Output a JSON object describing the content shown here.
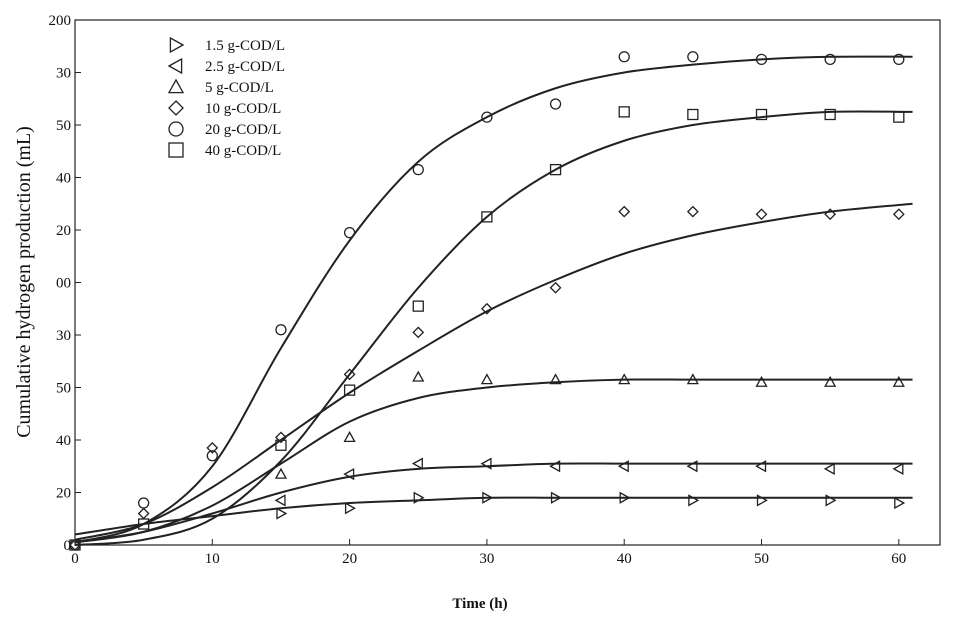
{
  "chart_data": {
    "type": "scatter",
    "xlabel": "Time (h)",
    "ylabel": "Cumulative hydrogen production (mL)",
    "x": [
      0,
      5,
      10,
      15,
      20,
      25,
      30,
      35,
      40,
      45,
      50,
      55,
      60
    ],
    "fit_x": [
      0,
      5,
      10,
      15,
      20,
      25,
      30,
      35,
      40,
      45,
      50,
      55,
      61
    ],
    "xlim": [
      0,
      63
    ],
    "ylim": [
      0,
      200
    ],
    "xticks": [
      0,
      10,
      20,
      30,
      40,
      50,
      60
    ],
    "yticks": [
      0,
      20,
      40,
      {
        "value": 60,
        "label": "50"
      },
      {
        "value": 80,
        "label": "30"
      },
      {
        "value": 100,
        "label": "00"
      },
      {
        "value": 120,
        "label": "20"
      },
      {
        "value": 140,
        "label": "40"
      },
      {
        "value": 160,
        "label": "50"
      },
      {
        "value": 180,
        "label": "30"
      },
      200
    ],
    "color": "#222222",
    "series": [
      {
        "name": "1.5 g-COD/L",
        "marker": "triangle-right",
        "values": [
          null,
          null,
          null,
          12,
          14,
          18,
          18,
          18,
          18,
          17,
          17,
          17,
          16
        ],
        "fit": [
          4,
          8,
          11,
          14,
          16,
          17,
          18,
          18,
          18,
          18,
          18,
          18,
          18
        ]
      },
      {
        "name": "2.5 g-COD/L",
        "marker": "triangle-left",
        "values": [
          null,
          null,
          null,
          17,
          27,
          31,
          31,
          30,
          30,
          30,
          30,
          29,
          29
        ],
        "fit": [
          1,
          5,
          12,
          20,
          26,
          29,
          30,
          31,
          31,
          31,
          31,
          31,
          31
        ]
      },
      {
        "name": "5  g-COD/L",
        "marker": "triangle-up",
        "values": [
          null,
          null,
          null,
          27,
          41,
          64,
          63,
          63,
          63,
          63,
          62,
          62,
          62
        ],
        "fit": [
          1,
          5,
          15,
          31,
          47,
          56,
          60,
          62,
          63,
          63,
          63,
          63,
          63
        ]
      },
      {
        "name": "10  g-COD/L",
        "marker": "diamond",
        "values": [
          0,
          12,
          37,
          41,
          65,
          81,
          90,
          98,
          127,
          127,
          126,
          126,
          126
        ],
        "fit": [
          2,
          8,
          22,
          40,
          58,
          74,
          89,
          101,
          111,
          118,
          123,
          127,
          130
        ]
      },
      {
        "name": "20  g-COD/L",
        "marker": "circle",
        "values": [
          0,
          16,
          34,
          82,
          119,
          143,
          163,
          168,
          186,
          186,
          185,
          185,
          185
        ],
        "fit": [
          1,
          8,
          30,
          75,
          116,
          146,
          163,
          174,
          180,
          183,
          185,
          186,
          186
        ]
      },
      {
        "name": "40  g-COD/L",
        "marker": "square",
        "values": [
          0,
          8,
          null,
          38,
          59,
          91,
          125,
          143,
          165,
          164,
          164,
          164,
          163
        ],
        "fit": [
          0,
          2,
          10,
          32,
          65,
          98,
          125,
          143,
          154,
          160,
          163,
          165,
          165
        ]
      }
    ]
  }
}
